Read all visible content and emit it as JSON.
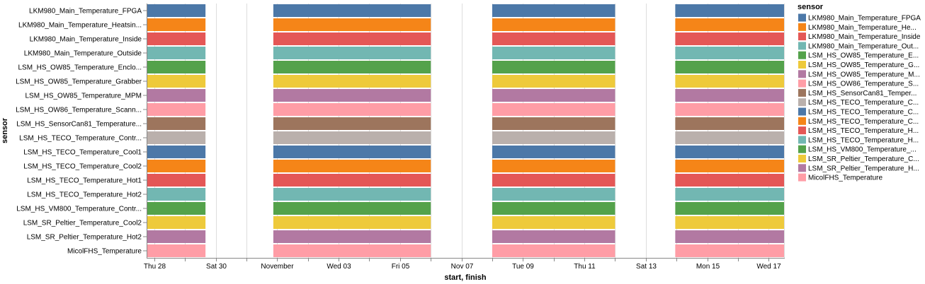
{
  "chart_data": {
    "type": "gantt",
    "xlabel": "start, finish",
    "ylabel": "sensor",
    "legend_title": "sensor",
    "legend_position": "right",
    "grid": true,
    "x_domain": [
      "2021-10-27T18:00",
      "2021-11-17T12:00"
    ],
    "x_ticks": [
      {
        "date": "2021-10-28",
        "label": "Thu 28"
      },
      {
        "date": "2021-10-29",
        "label": ""
      },
      {
        "date": "2021-10-30",
        "label": "Sat 30"
      },
      {
        "date": "2021-10-31",
        "label": ""
      },
      {
        "date": "2021-11-01",
        "label": "November"
      },
      {
        "date": "2021-11-02",
        "label": ""
      },
      {
        "date": "2021-11-03",
        "label": "Wed 03"
      },
      {
        "date": "2021-11-04",
        "label": ""
      },
      {
        "date": "2021-11-05",
        "label": "Fri 05"
      },
      {
        "date": "2021-11-06",
        "label": ""
      },
      {
        "date": "2021-11-07",
        "label": "Nov 07"
      },
      {
        "date": "2021-11-08",
        "label": ""
      },
      {
        "date": "2021-11-09",
        "label": "Tue 09"
      },
      {
        "date": "2021-11-10",
        "label": ""
      },
      {
        "date": "2021-11-11",
        "label": "Thu 11"
      },
      {
        "date": "2021-11-12",
        "label": ""
      },
      {
        "date": "2021-11-13",
        "label": "Sat 13"
      },
      {
        "date": "2021-11-14",
        "label": ""
      },
      {
        "date": "2021-11-15",
        "label": "Mon 15"
      },
      {
        "date": "2021-11-16",
        "label": ""
      },
      {
        "date": "2021-11-17",
        "label": "Wed 17"
      }
    ],
    "intervals": [
      {
        "start": "2021-10-27T18:00",
        "finish": "2021-10-29T16:00"
      },
      {
        "start": "2021-10-31T21:00",
        "finish": "2021-11-06T00:00"
      },
      {
        "start": "2021-11-08T00:00",
        "finish": "2021-11-12T00:00"
      },
      {
        "start": "2021-11-13T23:00",
        "finish": "2021-11-17T12:00"
      }
    ],
    "sensors": [
      {
        "label": "LKM980_Main_Temperature_FPGA",
        "legend": "LKM980_Main_Temperature_FPGA",
        "color": "#4c78a8"
      },
      {
        "label": "LKM980_Main_Temperature_Heatsin...",
        "legend": "LKM980_Main_Temperature_He...",
        "color": "#f58518"
      },
      {
        "label": "LKM980_Main_Temperature_Inside",
        "legend": "LKM980_Main_Temperature_Inside",
        "color": "#e45756"
      },
      {
        "label": "LKM980_Main_Temperature_Outside",
        "legend": "LKM980_Main_Temperature_Out...",
        "color": "#72b7b2"
      },
      {
        "label": "LSM_HS_OW85_Temperature_Enclo...",
        "legend": "LSM_HS_OW85_Temperature_E...",
        "color": "#54a24b"
      },
      {
        "label": "LSM_HS_OW85_Temperature_Grabber",
        "legend": "LSM_HS_OW85_Temperature_G...",
        "color": "#eeca3b"
      },
      {
        "label": "LSM_HS_OW85_Temperature_MPM",
        "legend": "LSM_HS_OW85_Temperature_M...",
        "color": "#b279a2"
      },
      {
        "label": "LSM_HS_OW86_Temperature_Scann...",
        "legend": "LSM_HS_OW86_Temperature_S...",
        "color": "#ff9da6"
      },
      {
        "label": "LSM_HS_SensorCan81_Temperature...",
        "legend": "LSM_HS_SensorCan81_Temper...",
        "color": "#9d755d"
      },
      {
        "label": "LSM_HS_TECO_Temperature_Contr...",
        "legend": "LSM_HS_TECO_Temperature_C...",
        "color": "#bab0ac"
      },
      {
        "label": "LSM_HS_TECO_Temperature_Cool1",
        "legend": "LSM_HS_TECO_Temperature_C...",
        "color": "#4c78a8"
      },
      {
        "label": "LSM_HS_TECO_Temperature_Cool2",
        "legend": "LSM_HS_TECO_Temperature_C...",
        "color": "#f58518"
      },
      {
        "label": "LSM_HS_TECO_Temperature_Hot1",
        "legend": "LSM_HS_TECO_Temperature_H...",
        "color": "#e45756"
      },
      {
        "label": "LSM_HS_TECO_Temperature_Hot2",
        "legend": "LSM_HS_TECO_Temperature_H...",
        "color": "#72b7b2"
      },
      {
        "label": "LSM_HS_VM800_Temperature_Contr...",
        "legend": "LSM_HS_VM800_Temperature_...",
        "color": "#54a24b"
      },
      {
        "label": "LSM_SR_Peltier_Temperature_Cool2",
        "legend": "LSM_SR_Peltier_Temperature_C...",
        "color": "#eeca3b"
      },
      {
        "label": "LSM_SR_Peltier_Temperature_Hot2",
        "legend": "LSM_SR_Peltier_Temperature_H...",
        "color": "#b279a2"
      },
      {
        "label": "MicolFHS_Temperature",
        "legend": "MicolFHS_Temperature",
        "color": "#ff9da6"
      }
    ]
  }
}
